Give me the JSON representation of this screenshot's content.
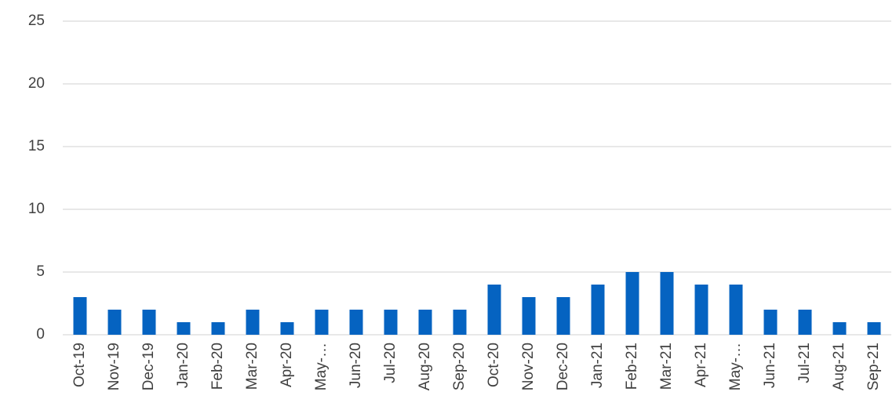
{
  "chart_data": {
    "type": "bar",
    "categories": [
      "Oct-19",
      "Nov-19",
      "Dec-19",
      "Jan-20",
      "Feb-20",
      "Mar-20",
      "Apr-20",
      "May-…",
      "Jun-20",
      "Jul-20",
      "Aug-20",
      "Sep-20",
      "Oct-20",
      "Nov-20",
      "Dec-20",
      "Jan-21",
      "Feb-21",
      "Mar-21",
      "Apr-21",
      "May-…",
      "Jun-21",
      "Jul-21",
      "Aug-21",
      "Sep-21"
    ],
    "values": [
      3,
      2,
      2,
      1,
      1,
      2,
      1,
      2,
      2,
      2,
      2,
      2,
      4,
      3,
      3,
      4,
      5,
      5,
      4,
      4,
      2,
      2,
      1,
      1
    ],
    "color": "#0563c1",
    "ylim": [
      0,
      25
    ],
    "yticks": [
      0,
      5,
      10,
      15,
      20,
      25
    ],
    "grid": true
  }
}
